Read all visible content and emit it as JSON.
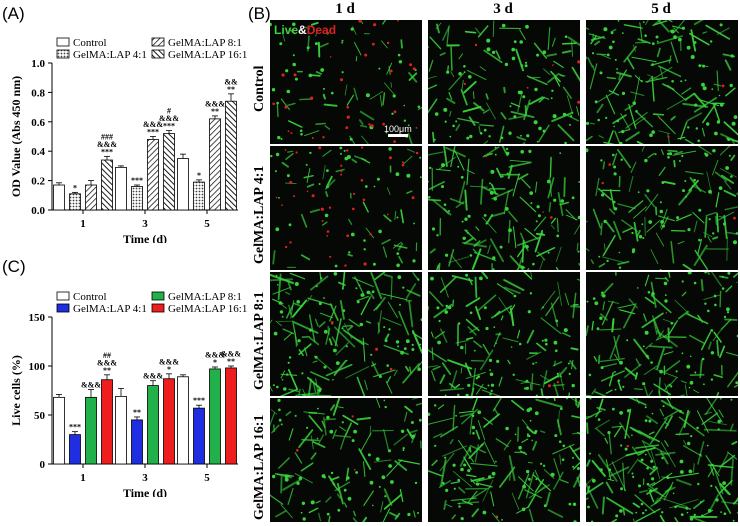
{
  "panels": {
    "a": "(A)",
    "b": "(B)",
    "c": "(C)"
  },
  "colors": {
    "green": "#22b04a",
    "blue": "#1f2ee0",
    "red": "#ee1e1e",
    "live": "#39d13c",
    "dead": "#e02020"
  },
  "chart_data": [
    {
      "type": "bar",
      "panel": "(A)",
      "xlabel": "Time (d)",
      "ylabel": "OD Value (Abs 450 nm)",
      "categories": [
        "1",
        "3",
        "5"
      ],
      "ylim": [
        0.0,
        1.0
      ],
      "yticks": [
        "0.0",
        "0.2",
        "0.4",
        "0.6",
        "0.8",
        "1.0"
      ],
      "legend_position": "top",
      "series": [
        {
          "name": "Control",
          "fill": "white",
          "values": [
            0.17,
            0.29,
            0.35
          ],
          "errors": [
            0.015,
            0.01,
            0.03
          ]
        },
        {
          "name": "GelMA:LAP 4:1",
          "fill": "dots",
          "values": [
            0.11,
            0.16,
            0.19
          ],
          "errors": [
            0.01,
            0.01,
            0.015
          ]
        },
        {
          "name": "GelMA:LAP 8:1",
          "fill": "hatch",
          "values": [
            0.17,
            0.48,
            0.62
          ],
          "errors": [
            0.03,
            0.02,
            0.02
          ]
        },
        {
          "name": "GelMA:LAP 16:1",
          "fill": "hatch-dense",
          "values": [
            0.34,
            0.52,
            0.74
          ],
          "errors": [
            0.025,
            0.02,
            0.05
          ]
        }
      ],
      "annotations": [
        {
          "category": 0,
          "series": 1,
          "lines": [
            "*"
          ]
        },
        {
          "category": 0,
          "series": 3,
          "lines": [
            "###",
            "&&&",
            "***"
          ]
        },
        {
          "category": 1,
          "series": 1,
          "lines": [
            "***"
          ]
        },
        {
          "category": 1,
          "series": 2,
          "lines": [
            "&&&",
            "***"
          ]
        },
        {
          "category": 1,
          "series": 3,
          "lines": [
            "#",
            "&&&",
            "***"
          ]
        },
        {
          "category": 2,
          "series": 1,
          "lines": [
            "*"
          ]
        },
        {
          "category": 2,
          "series": 2,
          "lines": [
            "&&&",
            "**"
          ]
        },
        {
          "category": 2,
          "series": 3,
          "lines": [
            "&&",
            "**"
          ]
        }
      ]
    },
    {
      "type": "bar",
      "panel": "(C)",
      "xlabel": "Time (d)",
      "ylabel": "Live cells (%)",
      "categories": [
        "1",
        "3",
        "5"
      ],
      "ylim": [
        0,
        150
      ],
      "yticks": [
        "0",
        "50",
        "100",
        "150"
      ],
      "legend_position": "top",
      "series": [
        {
          "name": "Control",
          "color": "#ffffff",
          "values": [
            68,
            69,
            89
          ],
          "errors": [
            3,
            8,
            2
          ]
        },
        {
          "name": "GelMA:LAP 4:1",
          "color": "#1f2ee0",
          "values": [
            30,
            45,
            57
          ],
          "errors": [
            3,
            3,
            3
          ]
        },
        {
          "name": "GelMA:LAP 8:1",
          "color": "#22b04a",
          "values": [
            68,
            80,
            97
          ],
          "errors": [
            8,
            5,
            2
          ]
        },
        {
          "name": "GelMA:LAP 16:1",
          "color": "#ee1e1e",
          "values": [
            86,
            87,
            98
          ],
          "errors": [
            5,
            5,
            2
          ]
        }
      ],
      "annotations": [
        {
          "category": 0,
          "series": 1,
          "lines": [
            "***"
          ]
        },
        {
          "category": 0,
          "series": 2,
          "lines": [
            "&&&"
          ]
        },
        {
          "category": 0,
          "series": 3,
          "lines": [
            "##",
            "&&&",
            "**"
          ]
        },
        {
          "category": 1,
          "series": 1,
          "lines": [
            "**"
          ]
        },
        {
          "category": 1,
          "series": 2,
          "lines": [
            "&&&"
          ]
        },
        {
          "category": 1,
          "series": 3,
          "lines": [
            "&&&",
            "*"
          ]
        },
        {
          "category": 2,
          "series": 1,
          "lines": [
            "***"
          ]
        },
        {
          "category": 2,
          "series": 2,
          "lines": [
            "&&&",
            "*"
          ]
        },
        {
          "category": 2,
          "series": 3,
          "lines": [
            "&&&",
            "**"
          ]
        }
      ]
    }
  ],
  "micrographs": {
    "columns": [
      "1 d",
      "3 d",
      "5 d"
    ],
    "rows": [
      "Control",
      "GelMA:LAP 4:1",
      "GelMA:LAP 8:1",
      "GelMA:LAP 16:1"
    ],
    "live_label": "Live",
    "amp_label": "&",
    "dead_label": "Dead",
    "scale_bar": "100μm",
    "density": [
      [
        0.25,
        0.6,
        0.8
      ],
      [
        0.2,
        0.7,
        0.65
      ],
      [
        0.85,
        0.7,
        0.75
      ],
      [
        0.6,
        0.8,
        1.0
      ]
    ],
    "dead_density": [
      [
        0.5,
        0.1,
        0.05
      ],
      [
        0.6,
        0.05,
        0.05
      ],
      [
        0.05,
        0.03,
        0.02
      ],
      [
        0.05,
        0.02,
        0.02
      ]
    ]
  }
}
